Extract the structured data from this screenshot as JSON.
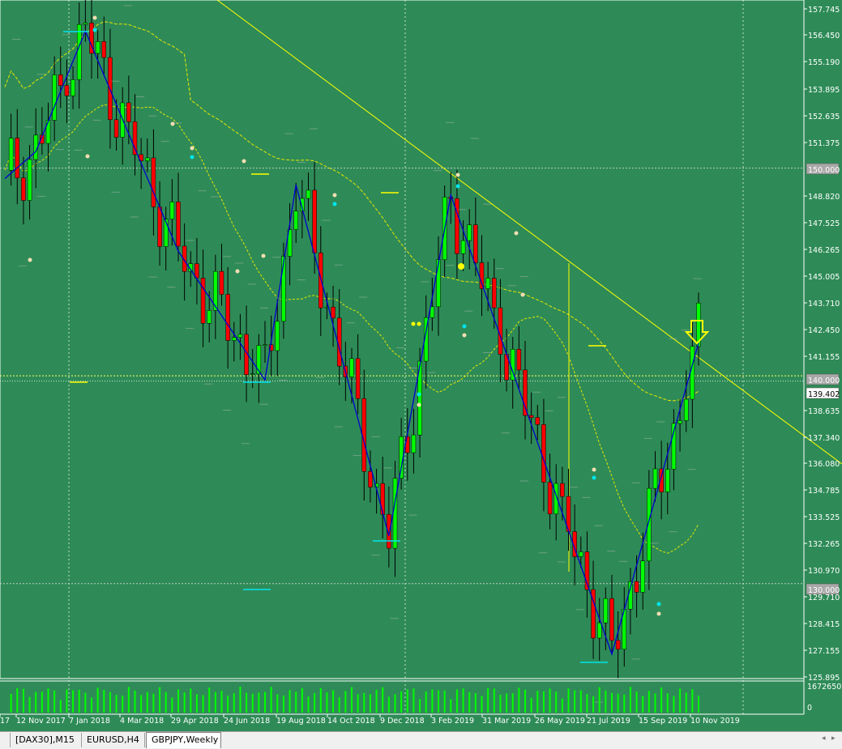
{
  "chart": {
    "symbol": "GBPJPY",
    "timeframe": "Weekly",
    "colors": {
      "background": "#2e8b57",
      "bull": "#00ff00",
      "bear": "#ff0000",
      "zigzag": "#0000cd",
      "trendline": "#ffff00",
      "ma": "#e6e600",
      "grid": "#ffffff",
      "axis_text": "#ffffff",
      "volume": "#00ff00"
    },
    "price_labels": [
      "157.745",
      "156.450",
      "155.190",
      "153.895",
      "152.635",
      "151.375",
      "150.000",
      "148.820",
      "147.525",
      "146.265",
      "145.005",
      "143.710",
      "142.450",
      "141.155",
      "140.000",
      "139.402",
      "138.635",
      "137.340",
      "136.080",
      "134.785",
      "133.525",
      "132.265",
      "130.970",
      "130.000",
      "129.710",
      "128.415",
      "127.155",
      "125.895"
    ],
    "current_price": "139.402",
    "level_140": "140.000",
    "level_150": "150.000",
    "level_130": "130.000",
    "volume_max": "1672650",
    "volume_zero": "0",
    "date_labels": [
      "17",
      "12 Nov 2017",
      "7 Jan 2018",
      "4 Mar 2018",
      "29 Apr 2018",
      "24 Jun 2018",
      "19 Aug 2018",
      "14 Oct 2018",
      "9 Dec 2018",
      "3 Feb 2019",
      "31 Mar 2019",
      "26 May 2019",
      "21 Jul 2019",
      "15 Sep 2019",
      "10 Nov 2019"
    ],
    "arrow_icon": "down-arrow-icon"
  },
  "tabs": [
    {
      "label": "[DAX30],M15",
      "active": false
    },
    {
      "label": "EURUSD,H4",
      "active": false
    },
    {
      "label": "GBPJPY,Weekly",
      "active": true
    }
  ]
}
